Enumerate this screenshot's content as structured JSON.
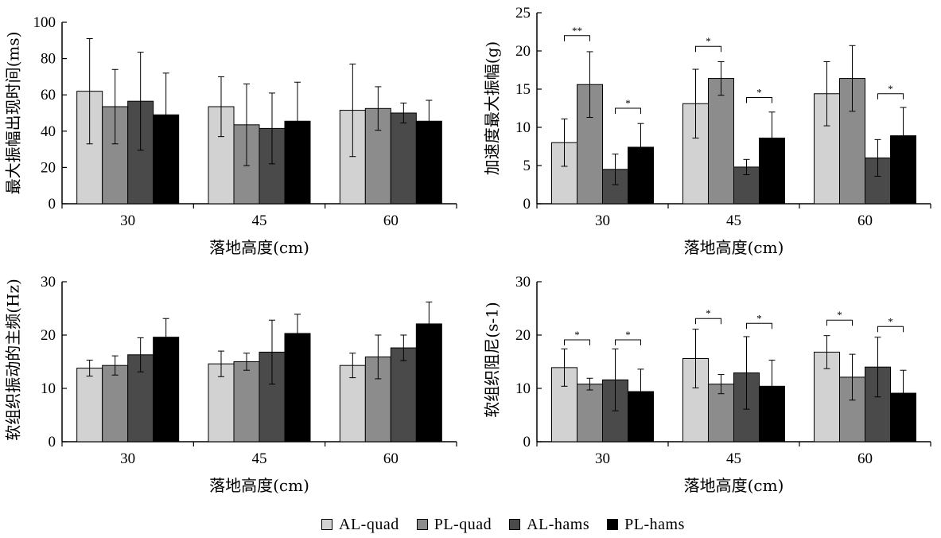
{
  "chart_data": [
    {
      "type": "bar",
      "id": "time-to-peak",
      "title": "",
      "xlabel": "落地高度(cm)",
      "ylabel": "最大振幅出现时间(ms)",
      "categories": [
        "30",
        "45",
        "60"
      ],
      "ylim": [
        0,
        100
      ],
      "yticks": [
        0,
        20,
        40,
        60,
        80,
        100
      ],
      "series": [
        {
          "name": "AL-quad",
          "values": [
            62,
            53.5,
            51.5
          ],
          "errors": [
            29,
            16.5,
            25.5
          ]
        },
        {
          "name": "PL-quad",
          "values": [
            53.5,
            43.5,
            52.5
          ],
          "errors": [
            20.5,
            22.5,
            12
          ]
        },
        {
          "name": "AL-hams",
          "values": [
            56.5,
            41.5,
            50
          ],
          "errors": [
            27,
            19.5,
            5.5
          ]
        },
        {
          "name": "PL-hams",
          "values": [
            49,
            45.5,
            45.5
          ],
          "errors": [
            23,
            21.5,
            11.5
          ]
        }
      ],
      "significance": []
    },
    {
      "type": "bar",
      "id": "max-accel-amplitude",
      "title": "",
      "xlabel": "落地高度(cm)",
      "ylabel": "加速度最大振幅(g)",
      "categories": [
        "30",
        "45",
        "60"
      ],
      "ylim": [
        0,
        25
      ],
      "yticks": [
        0,
        5,
        10,
        15,
        20,
        25
      ],
      "series": [
        {
          "name": "AL-quad",
          "values": [
            8.0,
            13.1,
            14.4
          ],
          "errors": [
            3.1,
            4.5,
            4.2
          ]
        },
        {
          "name": "PL-quad",
          "values": [
            15.6,
            16.4,
            16.4
          ],
          "errors": [
            4.3,
            2.2,
            4.3
          ]
        },
        {
          "name": "AL-hams",
          "values": [
            4.5,
            4.8,
            6.0
          ],
          "errors": [
            2.0,
            1.0,
            2.4
          ]
        },
        {
          "name": "PL-hams",
          "values": [
            7.4,
            8.6,
            8.9
          ],
          "errors": [
            3.1,
            3.4,
            3.7
          ]
        }
      ],
      "significance": [
        {
          "category": 0,
          "a": 0,
          "b": 1,
          "label": "**",
          "y": 22
        },
        {
          "category": 0,
          "a": 2,
          "b": 3,
          "label": "*",
          "y": 12.5
        },
        {
          "category": 1,
          "a": 0,
          "b": 1,
          "label": "*",
          "y": 20.6
        },
        {
          "category": 1,
          "a": 2,
          "b": 3,
          "label": "*",
          "y": 13.9
        },
        {
          "category": 2,
          "a": 2,
          "b": 3,
          "label": "*",
          "y": 14.4
        }
      ]
    },
    {
      "type": "bar",
      "id": "dominant-frequency",
      "title": "",
      "xlabel": "落地高度(cm)",
      "ylabel": "软组织振动的主频(Hz)",
      "categories": [
        "30",
        "45",
        "60"
      ],
      "ylim": [
        0,
        30
      ],
      "yticks": [
        0,
        10,
        20,
        30
      ],
      "series": [
        {
          "name": "AL-quad",
          "values": [
            13.8,
            14.6,
            14.3
          ],
          "errors": [
            1.5,
            2.4,
            2.3
          ]
        },
        {
          "name": "PL-quad",
          "values": [
            14.3,
            15.0,
            15.9
          ],
          "errors": [
            1.8,
            1.6,
            4.1
          ]
        },
        {
          "name": "AL-hams",
          "values": [
            16.3,
            16.8,
            17.6
          ],
          "errors": [
            3.2,
            6.0,
            2.4
          ]
        },
        {
          "name": "PL-hams",
          "values": [
            19.6,
            20.3,
            22.1
          ],
          "errors": [
            3.5,
            3.6,
            4.1
          ]
        }
      ],
      "significance": []
    },
    {
      "type": "bar",
      "id": "damping",
      "title": "",
      "xlabel": "落地高度(cm)",
      "ylabel": "软组织阻尼(s-1)",
      "categories": [
        "30",
        "45",
        "60"
      ],
      "ylim": [
        0,
        30
      ],
      "yticks": [
        0,
        10,
        20,
        30
      ],
      "series": [
        {
          "name": "AL-quad",
          "values": [
            13.9,
            15.6,
            16.8
          ],
          "errors": [
            3.5,
            5.5,
            3.1
          ]
        },
        {
          "name": "PL-quad",
          "values": [
            10.8,
            10.8,
            12.1
          ],
          "errors": [
            1.1,
            1.8,
            4.3
          ]
        },
        {
          "name": "AL-hams",
          "values": [
            11.6,
            12.9,
            14.0
          ],
          "errors": [
            5.8,
            6.8,
            5.6
          ]
        },
        {
          "name": "PL-hams",
          "values": [
            9.4,
            10.4,
            9.1
          ],
          "errors": [
            4.2,
            4.9,
            4.3
          ]
        }
      ],
      "significance": [
        {
          "category": 0,
          "a": 0,
          "b": 1,
          "label": "*",
          "y": 19.1
        },
        {
          "category": 0,
          "a": 2,
          "b": 3,
          "label": "*",
          "y": 19.1
        },
        {
          "category": 1,
          "a": 0,
          "b": 1,
          "label": "*",
          "y": 23.1
        },
        {
          "category": 1,
          "a": 2,
          "b": 3,
          "label": "*",
          "y": 22.2
        },
        {
          "category": 2,
          "a": 0,
          "b": 1,
          "label": "*",
          "y": 22.8
        },
        {
          "category": 2,
          "a": 2,
          "b": 3,
          "label": "*",
          "y": 21.6
        }
      ]
    }
  ],
  "legend": {
    "items": [
      {
        "label": "AL-quad",
        "color": "#d2d2d2"
      },
      {
        "label": "PL-quad",
        "color": "#8c8c8c"
      },
      {
        "label": "AL-hams",
        "color": "#4a4a4a"
      },
      {
        "label": "PL-hams",
        "color": "#000000"
      }
    ]
  }
}
